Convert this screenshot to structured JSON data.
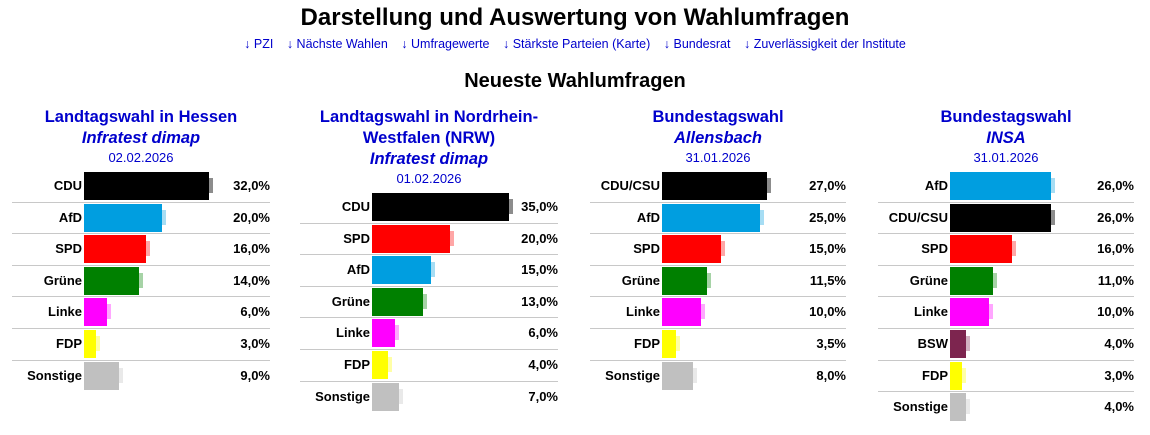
{
  "header": {
    "title": "Darstellung und Auswertung von Wahlumfragen",
    "nav": [
      "↓ PZI",
      "↓ Nächste Wahlen",
      "↓ Umfragewerte",
      "↓ Stärkste Parteien (Karte)",
      "↓ Bundesrat",
      "↓ Zuverlässigkeit der Institute"
    ]
  },
  "section": {
    "title": "Neueste Wahlumfragen"
  },
  "colors": {
    "CDU": "#000000",
    "CDU/CSU": "#000000",
    "AfD": "#009ee0",
    "SPD": "#ff0000",
    "Grüne": "#008000",
    "Linke": "#ff00ff",
    "FDP": "#ffff00",
    "BSW": "#7d254f",
    "Sonstige": "#c0c0c0"
  },
  "panels": [
    {
      "election": "Landtagswahl in Hessen",
      "institute": "Infratest dimap",
      "date": "02.02.2026",
      "rows": [
        {
          "party": "CDU",
          "value": 32.0,
          "pct_label": "32,0%"
        },
        {
          "party": "AfD",
          "value": 20.0,
          "pct_label": "20,0%"
        },
        {
          "party": "SPD",
          "value": 16.0,
          "pct_label": "16,0%"
        },
        {
          "party": "Grüne",
          "value": 14.0,
          "pct_label": "14,0%"
        },
        {
          "party": "Linke",
          "value": 6.0,
          "pct_label": "6,0%"
        },
        {
          "party": "FDP",
          "value": 3.0,
          "pct_label": "3,0%"
        },
        {
          "party": "Sonstige",
          "value": 9.0,
          "pct_label": "9,0%"
        }
      ]
    },
    {
      "election": "Landtagswahl in Nordrhein-Westfalen (NRW)",
      "institute": "Infratest dimap",
      "date": "01.02.2026",
      "rows": [
        {
          "party": "CDU",
          "value": 35.0,
          "pct_label": "35,0%"
        },
        {
          "party": "SPD",
          "value": 20.0,
          "pct_label": "20,0%"
        },
        {
          "party": "AfD",
          "value": 15.0,
          "pct_label": "15,0%"
        },
        {
          "party": "Grüne",
          "value": 13.0,
          "pct_label": "13,0%"
        },
        {
          "party": "Linke",
          "value": 6.0,
          "pct_label": "6,0%"
        },
        {
          "party": "FDP",
          "value": 4.0,
          "pct_label": "4,0%"
        },
        {
          "party": "Sonstige",
          "value": 7.0,
          "pct_label": "7,0%"
        }
      ]
    },
    {
      "election": "Bundestagswahl",
      "institute": "Allensbach",
      "date": "31.01.2026",
      "rows": [
        {
          "party": "CDU/CSU",
          "value": 27.0,
          "pct_label": "27,0%"
        },
        {
          "party": "AfD",
          "value": 25.0,
          "pct_label": "25,0%"
        },
        {
          "party": "SPD",
          "value": 15.0,
          "pct_label": "15,0%"
        },
        {
          "party": "Grüne",
          "value": 11.5,
          "pct_label": "11,5%"
        },
        {
          "party": "Linke",
          "value": 10.0,
          "pct_label": "10,0%"
        },
        {
          "party": "FDP",
          "value": 3.5,
          "pct_label": "3,5%"
        },
        {
          "party": "Sonstige",
          "value": 8.0,
          "pct_label": "8,0%"
        }
      ]
    },
    {
      "election": "Bundestagswahl",
      "institute": "INSA",
      "date": "31.01.2026",
      "rows": [
        {
          "party": "AfD",
          "value": 26.0,
          "pct_label": "26,0%"
        },
        {
          "party": "CDU/CSU",
          "value": 26.0,
          "pct_label": "26,0%"
        },
        {
          "party": "SPD",
          "value": 16.0,
          "pct_label": "16,0%"
        },
        {
          "party": "Grüne",
          "value": 11.0,
          "pct_label": "11,0%"
        },
        {
          "party": "Linke",
          "value": 10.0,
          "pct_label": "10,0%"
        },
        {
          "party": "BSW",
          "value": 4.0,
          "pct_label": "4,0%"
        },
        {
          "party": "FDP",
          "value": 3.0,
          "pct_label": "3,0%"
        },
        {
          "party": "Sonstige",
          "value": 4.0,
          "pct_label": "4,0%"
        }
      ]
    }
  ]
}
